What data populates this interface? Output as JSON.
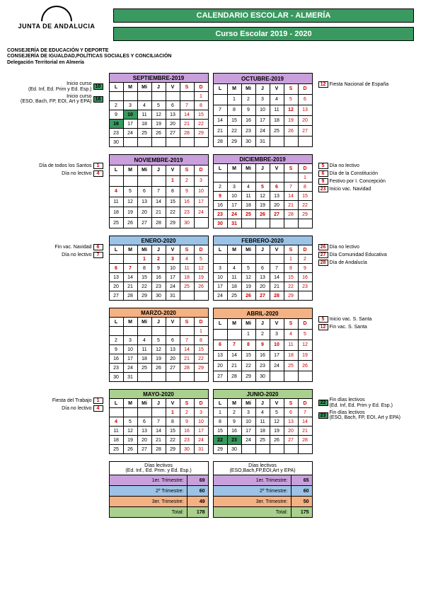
{
  "header": {
    "org": "JUNTA DE ANDALUCIA",
    "title1": "CALENDARIO ESCOLAR - ALMERÍA",
    "title2": "Curso Escolar   2019 - 2020",
    "sub1": "CONSEJERÍA DE EDUCACIÓN Y DEPORTE",
    "sub2": "CONSEJERÍA DE IGUALDAD,POLÍTICAS SOCIALES Y CONCILIACIÓN",
    "sub3": "Delegación Territorial en Almería"
  },
  "dayheaders": [
    "L",
    "M",
    "Mi",
    "J",
    "V",
    "S",
    "D"
  ],
  "rows": [
    {
      "left": [
        {
          "box": "10",
          "cls": "g",
          "text": "Inicio curso",
          "text2": "(Ed. Inf, Ed. Prim y Ed. Esp.)"
        },
        {
          "box": "16",
          "cls": "g",
          "text": "Inicio curso",
          "text2": "(ESO, Bach, FP, EOI, Art y EPA)"
        }
      ],
      "right": [
        {
          "box": "12",
          "cls": "r",
          "text": "Fiesta Nacional de España"
        }
      ],
      "months": [
        {
          "name": "SEPTIEMBRE-2019",
          "color": "purple",
          "weeks": [
            [
              "",
              "",
              "",
              "",
              "",
              "",
              "1"
            ],
            [
              "2",
              "3",
              "4",
              "5",
              "6",
              "7",
              "8"
            ],
            [
              "9",
              "10g",
              "11",
              "12",
              "13",
              "14",
              "15"
            ],
            [
              "16g",
              "17",
              "18",
              "19",
              "20",
              "21",
              "22"
            ],
            [
              "23",
              "24",
              "25",
              "26",
              "27",
              "28",
              "29"
            ],
            [
              "30",
              "",
              "",
              "",
              "",
              "",
              ""
            ]
          ]
        },
        {
          "name": "OCTUBRE-2019",
          "color": "purple",
          "weeks": [
            [
              "",
              "1",
              "2",
              "3",
              "4",
              "5",
              "6"
            ],
            [
              "7",
              "8",
              "9",
              "10",
              "11",
              "12h",
              "13"
            ],
            [
              "14",
              "15",
              "16",
              "17",
              "18",
              "19",
              "20"
            ],
            [
              "21",
              "22",
              "23",
              "24",
              "25",
              "26",
              "27"
            ],
            [
              "28",
              "29",
              "30",
              "31",
              "",
              "",
              ""
            ]
          ]
        }
      ]
    },
    {
      "left": [
        {
          "box": "1",
          "cls": "r",
          "text": "Día de todos los Santos"
        },
        {
          "box": "4",
          "cls": "r",
          "text": "Día no lectivo"
        }
      ],
      "right": [
        {
          "box": "5",
          "cls": "r",
          "text": "Día no lectivo"
        },
        {
          "box": "6",
          "cls": "r",
          "text": "Día de la Constitución"
        },
        {
          "box": "9",
          "cls": "r",
          "text": "Festivo por I. Concepción"
        },
        {
          "box": "23",
          "cls": "r",
          "text": "Inicio vac. Navidad"
        }
      ],
      "months": [
        {
          "name": "NOVIEMBRE-2019",
          "color": "purple",
          "weeks": [
            [
              "",
              "",
              "",
              "",
              "1h",
              "2",
              "3"
            ],
            [
              "4h",
              "5",
              "6",
              "7",
              "8",
              "9",
              "10"
            ],
            [
              "11",
              "12",
              "13",
              "14",
              "15",
              "16",
              "17"
            ],
            [
              "18",
              "19",
              "20",
              "21",
              "22",
              "23",
              "24"
            ],
            [
              "25",
              "26",
              "27",
              "28",
              "29",
              "30",
              ""
            ]
          ]
        },
        {
          "name": "DICIEMBRE-2019",
          "color": "purple",
          "weeks": [
            [
              "",
              "",
              "",
              "",
              "",
              "",
              "1"
            ],
            [
              "2",
              "3",
              "4",
              "5h",
              "6h",
              "7",
              "8"
            ],
            [
              "9h",
              "10",
              "11",
              "12",
              "13",
              "14",
              "15"
            ],
            [
              "16",
              "17",
              "18",
              "19",
              "20",
              "21",
              "22"
            ],
            [
              "23h",
              "24h",
              "25h",
              "26h",
              "27h",
              "28",
              "29"
            ],
            [
              "30h",
              "31h",
              "",
              "",
              "",
              "",
              ""
            ]
          ]
        }
      ]
    },
    {
      "left": [
        {
          "box": "6",
          "cls": "r",
          "text": "Fin vac. Navidad"
        },
        {
          "box": "7",
          "cls": "r",
          "text": "Día no lectivo"
        }
      ],
      "right": [
        {
          "box": "26",
          "cls": "r",
          "text": "Día no lectivo"
        },
        {
          "box": "27",
          "cls": "r",
          "text": "Día Comunidad Educativa"
        },
        {
          "box": "28",
          "cls": "r",
          "text": "Día de Andalucía"
        }
      ],
      "months": [
        {
          "name": "ENERO-2020",
          "color": "blue",
          "weeks": [
            [
              "",
              "",
              "1h",
              "2h",
              "3h",
              "4",
              "5"
            ],
            [
              "6h",
              "7h",
              "8",
              "9",
              "10",
              "11",
              "12"
            ],
            [
              "13",
              "14",
              "15",
              "16",
              "17",
              "18",
              "19"
            ],
            [
              "20",
              "21",
              "22",
              "23",
              "24",
              "25",
              "26"
            ],
            [
              "27",
              "28",
              "29",
              "30",
              "31",
              "",
              ""
            ]
          ]
        },
        {
          "name": "FEBRERO-2020",
          "color": "blue",
          "weeks": [
            [
              "",
              "",
              "",
              "",
              "",
              "1",
              "2"
            ],
            [
              "3",
              "4",
              "5",
              "6",
              "7",
              "8",
              "9"
            ],
            [
              "10",
              "11",
              "12",
              "13",
              "14",
              "15",
              "16"
            ],
            [
              "17",
              "18",
              "19",
              "20",
              "21",
              "22",
              "23"
            ],
            [
              "24",
              "25",
              "26h",
              "27h",
              "28h",
              "29",
              ""
            ]
          ]
        }
      ]
    },
    {
      "left": [],
      "right": [
        {
          "box": "5",
          "cls": "r",
          "text": "Inicio vac. S. Santa"
        },
        {
          "box": "12",
          "cls": "r",
          "text": "Fin vac. S. Santa"
        }
      ],
      "months": [
        {
          "name": "MARZO-2020",
          "color": "orange",
          "weeks": [
            [
              "",
              "",
              "",
              "",
              "",
              "",
              "1"
            ],
            [
              "2",
              "3",
              "4",
              "5",
              "6",
              "7",
              "8"
            ],
            [
              "9",
              "10",
              "11",
              "12",
              "13",
              "14",
              "15"
            ],
            [
              "16",
              "17",
              "18",
              "19",
              "20",
              "21",
              "22"
            ],
            [
              "23",
              "24",
              "25",
              "26",
              "27",
              "28",
              "29"
            ],
            [
              "30",
              "31",
              "",
              "",
              "",
              "",
              ""
            ]
          ]
        },
        {
          "name": "ABRIL-2020",
          "color": "orange",
          "weeks": [
            [
              "",
              "",
              "1",
              "2",
              "3",
              "4",
              "5"
            ],
            [
              "6h",
              "7h",
              "8h",
              "9h",
              "10h",
              "11",
              "12"
            ],
            [
              "13",
              "14",
              "15",
              "16",
              "17",
              "18",
              "19"
            ],
            [
              "20",
              "21",
              "22",
              "23",
              "24",
              "25",
              "26"
            ],
            [
              "27",
              "28",
              "29",
              "30",
              "",
              "",
              ""
            ]
          ]
        }
      ]
    },
    {
      "left": [
        {
          "box": "1",
          "cls": "r",
          "text": "Fiesta del Trabajo"
        },
        {
          "box": "4",
          "cls": "r",
          "text": "Día no lectivo"
        }
      ],
      "right": [
        {
          "box": "22",
          "cls": "g",
          "text": "Fin días lectivos",
          "text2": "(Ed. Inf, Ed. Prim y Ed. Esp.)"
        },
        {
          "box": "23",
          "cls": "g",
          "text": "Fin días lectivos",
          "text2": "(ESO, Bach, FP, EOI, Art y EPA)"
        }
      ],
      "months": [
        {
          "name": "MAYO-2020",
          "color": "green",
          "weeks": [
            [
              "",
              "",
              "",
              "",
              "1h",
              "2",
              "3"
            ],
            [
              "4h",
              "5",
              "6",
              "7",
              "8",
              "9",
              "10"
            ],
            [
              "11",
              "12",
              "13",
              "14",
              "15",
              "16",
              "17"
            ],
            [
              "18",
              "19",
              "20",
              "21",
              "22",
              "23",
              "24"
            ],
            [
              "25",
              "26",
              "27",
              "28",
              "29",
              "30",
              "31"
            ]
          ]
        },
        {
          "name": "JUNIO-2020",
          "color": "green",
          "weeks": [
            [
              "1",
              "2",
              "3",
              "4",
              "5",
              "6",
              "7"
            ],
            [
              "8",
              "9",
              "10",
              "11",
              "12",
              "13",
              "14"
            ],
            [
              "15",
              "16",
              "17",
              "18",
              "19",
              "20",
              "21"
            ],
            [
              "22g",
              "23g",
              "24",
              "25",
              "26",
              "27",
              "28"
            ],
            [
              "29",
              "30",
              "",
              "",
              "",
              "",
              ""
            ]
          ]
        }
      ]
    }
  ],
  "summary": [
    {
      "title": "Días lectivos",
      "sub": "(Ed. Inf., Ed. Prim. y Ed. Esp.)",
      "tri": [
        [
          "1er. Trimestre:",
          "69",
          "t1"
        ],
        [
          "2º Trimestre:",
          "60",
          "t2"
        ],
        [
          "3er. Trimestre:",
          "49",
          "t3"
        ],
        [
          "Total:",
          "178",
          "tot"
        ]
      ]
    },
    {
      "title": "Días lectivos",
      "sub": "(ESO,Bach,FP,EOI,Art y EPA)",
      "tri": [
        [
          "1er. Trimestre:",
          "65",
          "t1"
        ],
        [
          "2º Trimestre:",
          "60",
          "t2"
        ],
        [
          "3er. Trimestre:",
          "50",
          "t3"
        ],
        [
          "Total:",
          "175",
          "tot"
        ]
      ]
    }
  ]
}
